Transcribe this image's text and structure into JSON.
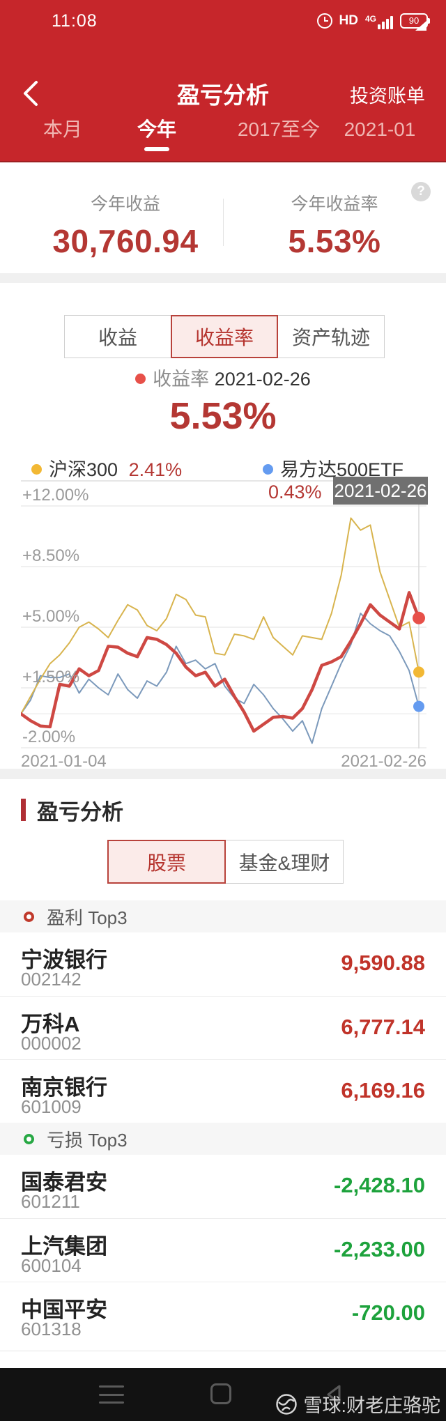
{
  "status_bar": {
    "time": "11:08",
    "hd_label": "HD",
    "network_label": "4G",
    "battery_level": "90"
  },
  "header": {
    "title": "盈亏分析",
    "action": "投资账单"
  },
  "period_tabs": {
    "items": [
      {
        "label": "本月"
      },
      {
        "label": "今年"
      },
      {
        "label": "2017至今"
      },
      {
        "label": "2021-01"
      }
    ],
    "active_index": 1
  },
  "stats": {
    "left": {
      "label": "今年收益",
      "value": "30,760.94"
    },
    "right": {
      "label": "今年收益率",
      "value": "5.53%"
    },
    "help_glyph": "?"
  },
  "chart_tabs": {
    "items": [
      {
        "label": "收益"
      },
      {
        "label": "收益率"
      },
      {
        "label": "资产轨迹"
      }
    ],
    "active_index": 1
  },
  "chart_data": {
    "type": "line",
    "selected_series_label": "收益率",
    "selected_date": "2021-02-26",
    "selected_value": "5.53%",
    "tooltip": "2021-02-26",
    "x_start_label": "2021-01-04",
    "x_end_label": "2021-02-26",
    "ylim": [
      -2,
      13.49
    ],
    "zero_line": 0,
    "grid": true,
    "y_ticks": [
      {
        "label": "+12.00%",
        "value": 12
      },
      {
        "label": "+8.50%",
        "value": 8.5
      },
      {
        "label": "+5.00%",
        "value": 5
      },
      {
        "label": "+1.50%",
        "value": 1.5
      },
      {
        "label": "-2.00%",
        "value": -2
      }
    ],
    "series": [
      {
        "name": "收益率",
        "final_label": "5.53%",
        "color": "#ce4843",
        "dot_color": "#e75049",
        "line_width": 4.5,
        "values": [
          0.0,
          -0.4,
          -0.7,
          -0.75,
          1.7,
          1.6,
          2.6,
          2.2,
          2.5,
          3.9,
          3.85,
          3.5,
          3.3,
          4.4,
          4.3,
          4.0,
          3.5,
          2.7,
          2.2,
          2.4,
          1.6,
          2.0,
          1.0,
          0.1,
          -1.0,
          -0.6,
          -0.2,
          -0.15,
          -0.25,
          0.3,
          1.4,
          2.8,
          3.0,
          3.3,
          4.2,
          5.2,
          6.3,
          5.7,
          5.3,
          4.9,
          7.0,
          5.53
        ]
      },
      {
        "name": "沪深300",
        "final_label": "2.41%",
        "color": "#d8b44e",
        "dot_color": "#f2b834",
        "line_width": 2,
        "values": [
          0.0,
          1.0,
          2.0,
          2.9,
          3.4,
          4.1,
          5.0,
          5.3,
          4.9,
          4.4,
          5.4,
          6.3,
          6.0,
          5.1,
          4.8,
          5.5,
          6.9,
          6.6,
          5.7,
          5.6,
          3.5,
          3.4,
          4.6,
          4.5,
          4.3,
          5.6,
          4.4,
          3.9,
          3.4,
          4.5,
          4.4,
          4.3,
          5.8,
          8.0,
          11.3,
          10.6,
          10.9,
          8.2,
          6.6,
          5.0,
          5.3,
          2.41
        ]
      },
      {
        "name": "易方达500ETF",
        "final_label": "0.43%",
        "color": "#7b99bb",
        "dot_color": "#649bf0",
        "line_width": 2,
        "values": [
          0.0,
          0.8,
          2.2,
          2.1,
          2.1,
          2.3,
          1.2,
          2.0,
          1.5,
          1.1,
          2.3,
          1.4,
          0.9,
          1.9,
          1.6,
          2.4,
          3.9,
          2.9,
          3.1,
          2.6,
          2.9,
          1.6,
          0.9,
          0.6,
          1.7,
          1.1,
          0.3,
          -0.3,
          -1.0,
          -0.4,
          -1.7,
          0.3,
          1.6,
          2.9,
          4.0,
          5.8,
          5.2,
          4.8,
          4.5,
          3.6,
          2.5,
          0.43
        ]
      }
    ]
  },
  "analysis": {
    "section_title": "盈亏分析",
    "tabs": {
      "items": [
        {
          "label": "股票"
        },
        {
          "label": "基金&理财"
        }
      ],
      "active_index": 0
    },
    "profit": {
      "label": "盈利 Top3",
      "rows": [
        {
          "name": "宁波银行",
          "code": "002142",
          "value": "9,590.88"
        },
        {
          "name": "万科A",
          "code": "000002",
          "value": "6,777.14"
        },
        {
          "name": "南京银行",
          "code": "601009",
          "value": "6,169.16"
        }
      ]
    },
    "loss": {
      "label": "亏损 Top3",
      "rows": [
        {
          "name": "国泰君安",
          "code": "601211",
          "value": "-2,428.10"
        },
        {
          "name": "上汽集团",
          "code": "600104",
          "value": "-2,233.00"
        },
        {
          "name": "中国平安",
          "code": "601318",
          "value": "-720.00"
        }
      ]
    }
  },
  "footer": {
    "watermark": "雪球:财老庄骆驼"
  },
  "colors": {
    "banner_red": "#c6262b",
    "value_red": "#b43733",
    "profit_red": "#c03329",
    "loss_green": "#1da23c",
    "line_red": "#ce4843",
    "line_yellow": "#d8b44e",
    "line_blue": "#7b99bb"
  }
}
